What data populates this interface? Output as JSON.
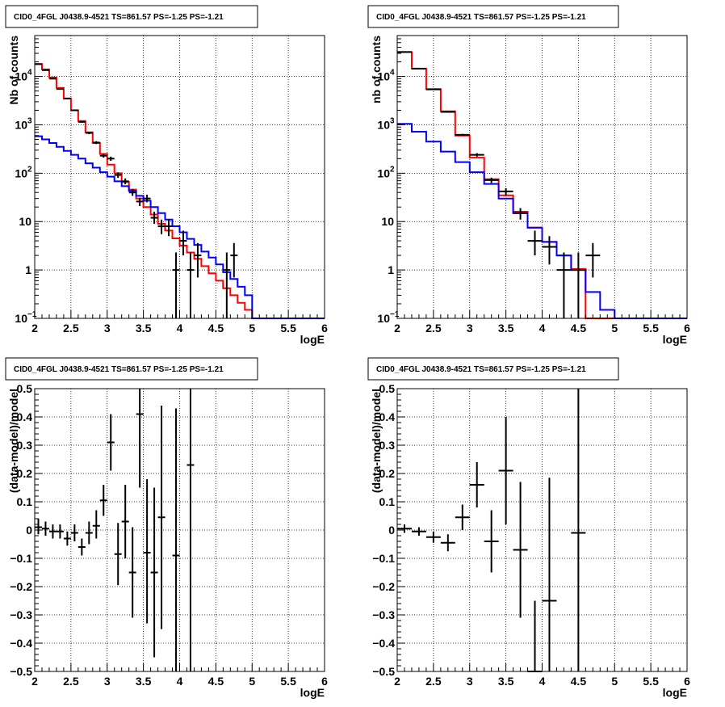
{
  "chart_data": [
    {
      "id": "p1",
      "type": "line",
      "title": "CID0_4FGL J0438.9-4521 TS=861.57 PS=-1.25 PS=-1.21",
      "xlabel": "logE",
      "ylabel": "Nb of counts",
      "xlim": [
        2,
        6
      ],
      "ylim": [
        0.1,
        70000
      ],
      "yscale": "log",
      "grid": true,
      "xticks": [
        "2",
        "2.5",
        "3",
        "3.5",
        "4",
        "4.5",
        "5",
        "5.5",
        "6"
      ],
      "yticks": [
        {
          "v": 0.1,
          "b": "10",
          "e": "−1"
        },
        {
          "v": 1,
          "b": "1",
          "e": ""
        },
        {
          "v": 10,
          "b": "10",
          "e": ""
        },
        {
          "v": 100,
          "b": "10",
          "e": "2"
        },
        {
          "v": 1000,
          "b": "10",
          "e": "3"
        },
        {
          "v": 10000,
          "b": "10",
          "e": "4"
        }
      ],
      "hist_edges": [
        2.0,
        2.1,
        2.2,
        2.3,
        2.4,
        2.5,
        2.6,
        2.7,
        2.8,
        2.9,
        3.0,
        3.1,
        3.2,
        3.3,
        3.4,
        3.5,
        3.6,
        3.7,
        3.8,
        3.9,
        4.0,
        4.1,
        4.2,
        4.3,
        4.4,
        4.5,
        4.6,
        4.7,
        4.8,
        4.9,
        5.0,
        5.1,
        5.2,
        5.3,
        5.4,
        5.5,
        5.6,
        5.7,
        5.8,
        5.9,
        6.0
      ],
      "series": [
        {
          "kind": "hist",
          "color": "#ff0000",
          "values": [
            18000,
            14000,
            9500,
            5800,
            3500,
            2000,
            1200,
            700,
            420,
            250,
            150,
            100,
            66,
            46,
            30,
            20,
            14,
            9,
            6.5,
            4.5,
            3.2,
            2.3,
            1.7,
            1.2,
            0.85,
            0.6,
            0.42,
            0.3,
            0.21,
            0.15,
            0.1,
            0.1,
            0.1,
            0.1,
            0.1,
            0.1,
            0.1,
            0.1,
            0.1,
            0.1
          ]
        },
        {
          "kind": "hist",
          "color": "#0000ff",
          "values": [
            580,
            500,
            420,
            350,
            290,
            240,
            200,
            160,
            130,
            105,
            85,
            68,
            54,
            43,
            34,
            27,
            20,
            15,
            11,
            8,
            6,
            4.4,
            3.3,
            2.4,
            1.8,
            1.3,
            0.9,
            0.65,
            0.45,
            0.3,
            0.1,
            0.1,
            0.1,
            0.1,
            0.1,
            0.1,
            0.1,
            0.1,
            0.1,
            0.1
          ]
        },
        {
          "kind": "points",
          "color": "#000000",
          "halfwidth": 0.05,
          "points": [
            {
              "x": 2.05,
              "y": 18000,
              "lo": 17800,
              "hi": 18200
            },
            {
              "x": 2.15,
              "y": 13500,
              "lo": 13350,
              "hi": 13650
            },
            {
              "x": 2.25,
              "y": 9000,
              "lo": 8850,
              "hi": 9150
            },
            {
              "x": 2.35,
              "y": 5500,
              "lo": 5400,
              "hi": 5600
            },
            {
              "x": 2.45,
              "y": 3500,
              "lo": 3400,
              "hi": 3600
            },
            {
              "x": 2.55,
              "y": 2000,
              "lo": 1930,
              "hi": 2070
            },
            {
              "x": 2.65,
              "y": 1150,
              "lo": 1100,
              "hi": 1200
            },
            {
              "x": 2.75,
              "y": 680,
              "lo": 640,
              "hi": 720
            },
            {
              "x": 2.85,
              "y": 430,
              "lo": 400,
              "hi": 460
            },
            {
              "x": 2.95,
              "y": 230,
              "lo": 210,
              "hi": 250
            },
            {
              "x": 3.05,
              "y": 200,
              "lo": 180,
              "hi": 220
            },
            {
              "x": 3.15,
              "y": 92,
              "lo": 80,
              "hi": 104
            },
            {
              "x": 3.25,
              "y": 68,
              "lo": 59,
              "hi": 78
            },
            {
              "x": 3.35,
              "y": 40,
              "lo": 34,
              "hi": 47
            },
            {
              "x": 3.45,
              "y": 26,
              "lo": 21,
              "hi": 31
            },
            {
              "x": 3.55,
              "y": 30,
              "lo": 25,
              "hi": 36
            },
            {
              "x": 3.65,
              "y": 12,
              "lo": 9,
              "hi": 16
            },
            {
              "x": 3.75,
              "y": 8,
              "lo": 5.5,
              "hi": 11
            },
            {
              "x": 3.85,
              "y": 8,
              "lo": 5,
              "hi": 11
            },
            {
              "x": 3.95,
              "y": 1,
              "lo": 0.1,
              "hi": 2.3
            },
            {
              "x": 4.05,
              "y": 4,
              "lo": 2,
              "hi": 6.5
            },
            {
              "x": 4.15,
              "y": 1,
              "lo": 0.1,
              "hi": 2.3
            },
            {
              "x": 4.25,
              "y": 2,
              "lo": 0.7,
              "hi": 3.6
            },
            {
              "x": 4.65,
              "y": 1,
              "lo": 0.1,
              "hi": 2.3
            },
            {
              "x": 4.75,
              "y": 2,
              "lo": 0.7,
              "hi": 3.6
            }
          ]
        }
      ]
    },
    {
      "id": "p2",
      "type": "line",
      "title": "CID0_4FGL J0438.9-4521 TS=861.57 PS=-1.25 PS=-1.21",
      "xlabel": "logE",
      "ylabel": "nb of counts",
      "xlim": [
        2,
        6
      ],
      "ylim": [
        0.1,
        70000
      ],
      "yscale": "log",
      "grid": true,
      "xticks": [
        "2",
        "2.5",
        "3",
        "3.5",
        "4",
        "4.5",
        "5",
        "5.5",
        "6"
      ],
      "yticks": [
        {
          "v": 0.1,
          "b": "10",
          "e": "−1"
        },
        {
          "v": 1,
          "b": "1",
          "e": ""
        },
        {
          "v": 10,
          "b": "10",
          "e": ""
        },
        {
          "v": 100,
          "b": "10",
          "e": "2"
        },
        {
          "v": 1000,
          "b": "10",
          "e": "3"
        },
        {
          "v": 10000,
          "b": "10",
          "e": "4"
        }
      ],
      "hist_edges": [
        2.0,
        2.2,
        2.4,
        2.6,
        2.8,
        3.0,
        3.2,
        3.4,
        3.6,
        3.8,
        4.0,
        4.2,
        4.4,
        4.6,
        4.8,
        5.0,
        5.2,
        5.4,
        5.6,
        5.8,
        6.0
      ],
      "series": [
        {
          "kind": "hist",
          "color": "#ff0000",
          "values": [
            32000,
            14500,
            5500,
            1900,
            600,
            210,
            75,
            35,
            16,
            7.5,
            3.8,
            2.0,
            1.05,
            0.1,
            0.1,
            0.1,
            0.1,
            0.1,
            0.1,
            0.1
          ]
        },
        {
          "kind": "hist",
          "color": "#0000ff",
          "values": [
            1050,
            720,
            450,
            280,
            170,
            105,
            60,
            30,
            15,
            7.5,
            3.8,
            2.0,
            1.0,
            0.35,
            0.15,
            0.1,
            0.1,
            0.1,
            0.1,
            0.1
          ]
        },
        {
          "kind": "points",
          "color": "#000000",
          "halfwidth": 0.1,
          "points": [
            {
              "x": 2.1,
              "y": 32000,
              "lo": 31800,
              "hi": 32200
            },
            {
              "x": 2.3,
              "y": 14500,
              "lo": 14300,
              "hi": 14700
            },
            {
              "x": 2.5,
              "y": 5400,
              "lo": 5300,
              "hi": 5500
            },
            {
              "x": 2.7,
              "y": 1850,
              "lo": 1790,
              "hi": 1910
            },
            {
              "x": 2.9,
              "y": 620,
              "lo": 590,
              "hi": 650
            },
            {
              "x": 3.1,
              "y": 240,
              "lo": 220,
              "hi": 260
            },
            {
              "x": 3.3,
              "y": 72,
              "lo": 63,
              "hi": 81
            },
            {
              "x": 3.5,
              "y": 42,
              "lo": 35,
              "hi": 49
            },
            {
              "x": 3.7,
              "y": 15,
              "lo": 11,
              "hi": 19
            },
            {
              "x": 3.9,
              "y": 4,
              "lo": 2,
              "hi": 6.5
            },
            {
              "x": 4.1,
              "y": 3,
              "lo": 1.3,
              "hi": 5
            },
            {
              "x": 4.3,
              "y": 1,
              "lo": 0.1,
              "hi": 2.3
            },
            {
              "x": 4.5,
              "y": 1,
              "lo": 0.1,
              "hi": 2.3
            },
            {
              "x": 4.7,
              "y": 2,
              "lo": 0.7,
              "hi": 3.6
            }
          ]
        }
      ]
    },
    {
      "id": "p3",
      "type": "scatter",
      "title": "CID0_4FGL J0438.9-4521 TS=861.57 PS=-1.25 PS=-1.21",
      "xlabel": "logE",
      "ylabel": "(data-model)/model",
      "xlim": [
        2,
        6
      ],
      "ylim": [
        -0.5,
        0.5
      ],
      "yscale": "linear",
      "grid": true,
      "xticks": [
        "2",
        "2.5",
        "3",
        "3.5",
        "4",
        "4.5",
        "5",
        "5.5",
        "6"
      ],
      "yticks_linear": [
        "−0.5",
        "−0.4",
        "−0.3",
        "−0.2",
        "−0.1",
        "0",
        "0.1",
        "0.2",
        "0.3",
        "0.4",
        "0.5"
      ],
      "series": [
        {
          "kind": "points",
          "color": "#000000",
          "halfwidth": 0.05,
          "points": [
            {
              "x": 2.05,
              "y": 0.01,
              "lo": -0.015,
              "hi": 0.04
            },
            {
              "x": 2.15,
              "y": 0.005,
              "lo": -0.02,
              "hi": 0.03
            },
            {
              "x": 2.25,
              "y": -0.005,
              "lo": -0.03,
              "hi": 0.02
            },
            {
              "x": 2.35,
              "y": -0.005,
              "lo": -0.03,
              "hi": 0.02
            },
            {
              "x": 2.45,
              "y": -0.03,
              "lo": -0.055,
              "hi": -0.005
            },
            {
              "x": 2.55,
              "y": -0.01,
              "lo": -0.04,
              "hi": 0.02
            },
            {
              "x": 2.65,
              "y": -0.06,
              "lo": -0.09,
              "hi": -0.03
            },
            {
              "x": 2.75,
              "y": -0.01,
              "lo": -0.05,
              "hi": 0.03
            },
            {
              "x": 2.85,
              "y": 0.015,
              "lo": -0.03,
              "hi": 0.07
            },
            {
              "x": 2.95,
              "y": 0.105,
              "lo": 0.05,
              "hi": 0.16
            },
            {
              "x": 3.05,
              "y": 0.31,
              "lo": 0.21,
              "hi": 0.41
            },
            {
              "x": 3.15,
              "y": -0.085,
              "lo": -0.195,
              "hi": 0.025
            },
            {
              "x": 3.25,
              "y": 0.03,
              "lo": -0.1,
              "hi": 0.16
            },
            {
              "x": 3.35,
              "y": -0.15,
              "lo": -0.31,
              "hi": 0.01
            },
            {
              "x": 3.45,
              "y": 0.41,
              "lo": 0.15,
              "hi": 0.5
            },
            {
              "x": 3.55,
              "y": -0.08,
              "lo": -0.33,
              "hi": 0.18
            },
            {
              "x": 3.65,
              "y": -0.15,
              "lo": -0.45,
              "hi": 0.15
            },
            {
              "x": 3.75,
              "y": 0.045,
              "lo": -0.35,
              "hi": 0.44
            },
            {
              "x": 3.95,
              "y": -0.09,
              "lo": -0.5,
              "hi": 0.43
            },
            {
              "x": 4.15,
              "y": 0.23,
              "lo": -0.5,
              "hi": 0.5
            }
          ]
        }
      ]
    },
    {
      "id": "p4",
      "type": "scatter",
      "title": "CID0_4FGL J0438.9-4521 TS=861.57 PS=-1.25 PS=-1.21",
      "xlabel": "logE",
      "ylabel": "(data-model)/model",
      "xlim": [
        2,
        6
      ],
      "ylim": [
        -0.5,
        0.5
      ],
      "yscale": "linear",
      "grid": true,
      "xticks": [
        "2",
        "2.5",
        "3",
        "3.5",
        "4",
        "4.5",
        "5",
        "5.5",
        "6"
      ],
      "yticks_linear": [
        "−0.5",
        "−0.4",
        "−0.3",
        "−0.2",
        "−0.1",
        "0",
        "0.1",
        "0.2",
        "0.3",
        "0.4",
        "0.5"
      ],
      "series": [
        {
          "kind": "points",
          "color": "#000000",
          "halfwidth": 0.1,
          "points": [
            {
              "x": 2.1,
              "y": 0.005,
              "lo": -0.01,
              "hi": 0.02
            },
            {
              "x": 2.3,
              "y": -0.005,
              "lo": -0.02,
              "hi": 0.01
            },
            {
              "x": 2.5,
              "y": -0.025,
              "lo": -0.045,
              "hi": -0.005
            },
            {
              "x": 2.7,
              "y": -0.045,
              "lo": -0.075,
              "hi": -0.015
            },
            {
              "x": 2.9,
              "y": 0.045,
              "lo": 0.0,
              "hi": 0.09
            },
            {
              "x": 3.1,
              "y": 0.16,
              "lo": 0.08,
              "hi": 0.24
            },
            {
              "x": 3.3,
              "y": -0.04,
              "lo": -0.15,
              "hi": 0.07
            },
            {
              "x": 3.5,
              "y": 0.21,
              "lo": 0.02,
              "hi": 0.4
            },
            {
              "x": 3.7,
              "y": -0.07,
              "lo": -0.31,
              "hi": 0.17
            },
            {
              "x": 3.9,
              "y": -0.5,
              "lo": -0.5,
              "hi": -0.25
            },
            {
              "x": 4.1,
              "y": -0.25,
              "lo": -0.5,
              "hi": 0.185
            },
            {
              "x": 4.5,
              "y": -0.01,
              "lo": -0.5,
              "hi": 0.5
            }
          ]
        }
      ]
    }
  ]
}
